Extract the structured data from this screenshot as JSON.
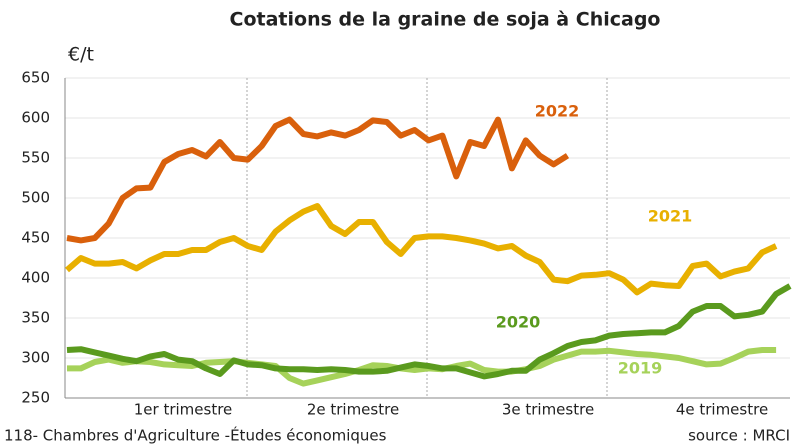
{
  "chart_data": {
    "type": "line",
    "title": "Cotations de la graine de soja à Chicago",
    "y_label": "€/t",
    "quarters": [
      "1er trimestre",
      "2e trimestre",
      "3e trimestre",
      "4e trimestre"
    ],
    "footer_left": "118- Chambres d'Agriculture -Études économiques",
    "footer_right": "source :  MRCI",
    "categories": [
      null,
      null,
      null,
      null,
      null,
      null,
      null,
      null,
      null,
      null,
      null,
      null,
      null,
      null,
      null,
      null,
      null,
      null,
      null,
      null,
      null,
      null,
      null,
      null,
      null,
      null,
      null,
      null,
      null,
      null,
      null,
      null,
      null,
      null,
      null,
      null,
      null,
      null,
      null,
      null,
      null,
      null,
      null,
      null,
      null,
      null,
      null,
      null,
      null,
      null,
      null,
      null,
      null
    ],
    "ylim": [
      250,
      650
    ],
    "yticks": [
      250,
      300,
      350,
      400,
      450,
      500,
      550,
      600,
      650
    ],
    "grid": true,
    "series": [
      {
        "name": "2022",
        "color": "#d9600c",
        "values": [
          450,
          447,
          450,
          468,
          500,
          512,
          513,
          545,
          555,
          560,
          552,
          570,
          550,
          548,
          565,
          590,
          598,
          580,
          577,
          582,
          578,
          585,
          597,
          595,
          578,
          585,
          572,
          578,
          527,
          570,
          565,
          598,
          537,
          572,
          553,
          542,
          553,
          null,
          null,
          null,
          null,
          null,
          null,
          null,
          null,
          null,
          null,
          null,
          null,
          null,
          null,
          null,
          null
        ]
      },
      {
        "name": "2021",
        "color": "#e8b000",
        "values": [
          410,
          425,
          418,
          418,
          420,
          412,
          422,
          430,
          430,
          435,
          435,
          445,
          450,
          440,
          435,
          458,
          472,
          483,
          490,
          465,
          455,
          470,
          470,
          445,
          430,
          450,
          452,
          452,
          450,
          447,
          443,
          437,
          440,
          428,
          420,
          398,
          396,
          403,
          404,
          406,
          398,
          382,
          393,
          391,
          390,
          415,
          418,
          402,
          408,
          412,
          432,
          440,
          null
        ]
      },
      {
        "name": "2020",
        "color": "#5a9a1e",
        "values": [
          310,
          311,
          307,
          303,
          299,
          296,
          302,
          305,
          298,
          296,
          287,
          280,
          297,
          292,
          291,
          287,
          286,
          286,
          285,
          286,
          285,
          283,
          283,
          284,
          288,
          292,
          290,
          287,
          287,
          282,
          277,
          280,
          284,
          284,
          298,
          306,
          315,
          320,
          322,
          328,
          330,
          331,
          332,
          332,
          340,
          358,
          365,
          365,
          352,
          354,
          358,
          380,
          390
        ]
      },
      {
        "name": "2019",
        "color": "#a6d25a",
        "values": [
          287,
          287,
          295,
          298,
          294,
          296,
          295,
          292,
          291,
          290,
          294,
          295,
          296,
          294,
          292,
          290,
          275,
          268,
          272,
          276,
          280,
          285,
          291,
          290,
          287,
          285,
          287,
          286,
          290,
          293,
          285,
          283,
          283,
          286,
          290,
          298,
          303,
          308,
          308,
          309,
          307,
          305,
          304,
          302,
          300,
          296,
          292,
          293,
          300,
          308,
          310,
          310,
          null
        ]
      }
    ]
  }
}
